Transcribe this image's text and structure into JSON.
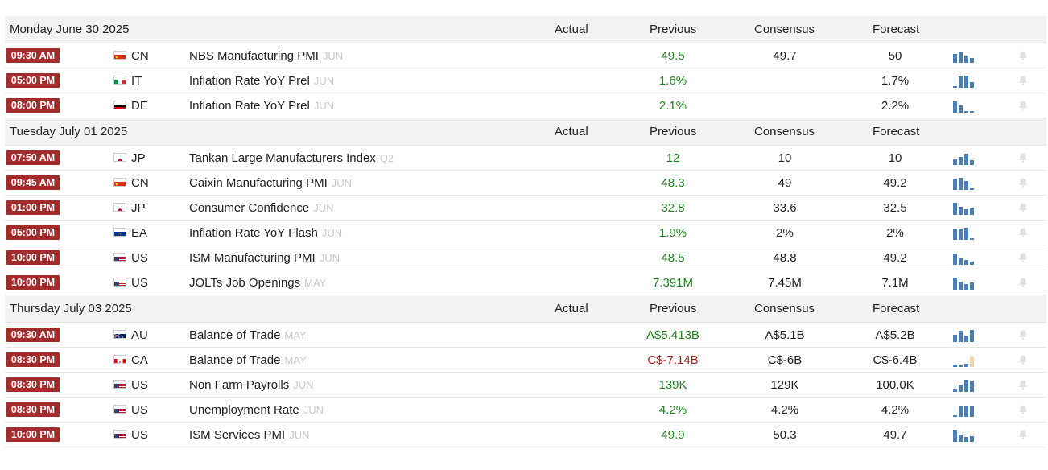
{
  "headers": {
    "actual": "Actual",
    "previous": "Previous",
    "consensus": "Consensus",
    "forecast": "Forecast"
  },
  "colors": {
    "time_badge": "#a22b2b",
    "positive": "#1f7f1f",
    "negative": "#a71e1e",
    "spark_bar": "#4a7fb5",
    "spark_bar_light": "#f0d8a8"
  },
  "days": [
    {
      "date": "Monday June 30 2025",
      "events": [
        {
          "time": "09:30 AM",
          "flag": "cn-flag-icon",
          "country": "CN",
          "name": "NBS Manufacturing PMI",
          "ref": "JUN",
          "actual": "",
          "previous": "49.5",
          "prev_color": "green",
          "consensus": "49.7",
          "forecast": "50",
          "spark": [
            0.7,
            0.9,
            0.55,
            0.4
          ],
          "spark_light": false
        },
        {
          "time": "05:00 PM",
          "flag": "it-flag-icon",
          "country": "IT",
          "name": "Inflation Rate YoY Prel",
          "ref": "JUN",
          "actual": "",
          "previous": "1.6%",
          "prev_color": "green",
          "consensus": "",
          "forecast": "1.7%",
          "spark": [
            0.12,
            0.9,
            0.95,
            0.45
          ],
          "spark_light": false
        },
        {
          "time": "08:00 PM",
          "flag": "de-flag-icon",
          "country": "DE",
          "name": "Inflation Rate YoY Prel",
          "ref": "JUN",
          "actual": "",
          "previous": "2.1%",
          "prev_color": "green",
          "consensus": "",
          "forecast": "2.2%",
          "spark": [
            0.9,
            0.55,
            0.15,
            0.15
          ],
          "spark_light": false
        }
      ]
    },
    {
      "date": "Tuesday July 01 2025",
      "events": [
        {
          "time": "07:50 AM",
          "flag": "jp-flag-icon",
          "country": "JP",
          "name": "Tankan Large Manufacturers Index",
          "ref": "Q2",
          "actual": "",
          "previous": "12",
          "prev_color": "green",
          "consensus": "10",
          "forecast": "10",
          "spark": [
            0.45,
            0.6,
            0.85,
            0.35
          ],
          "spark_light": false
        },
        {
          "time": "09:45 AM",
          "flag": "cn-flag-icon",
          "country": "CN",
          "name": "Caixin Manufacturing PMI",
          "ref": "JUN",
          "actual": "",
          "previous": "48.3",
          "prev_color": "green",
          "consensus": "49",
          "forecast": "49.2",
          "spark": [
            0.85,
            0.95,
            0.7,
            0.12
          ],
          "spark_light": false
        },
        {
          "time": "01:00 PM",
          "flag": "jp-flag-icon",
          "country": "JP",
          "name": "Consumer Confidence",
          "ref": "JUN",
          "actual": "",
          "previous": "32.8",
          "prev_color": "green",
          "consensus": "33.6",
          "forecast": "32.5",
          "spark": [
            0.95,
            0.6,
            0.45,
            0.55
          ],
          "spark_light": false
        },
        {
          "time": "05:00 PM",
          "flag": "eu-flag-icon",
          "country": "EA",
          "name": "Inflation Rate YoY Flash",
          "ref": "JUN",
          "actual": "",
          "previous": "1.9%",
          "prev_color": "green",
          "consensus": "2%",
          "forecast": "2%",
          "spark": [
            0.9,
            0.85,
            0.95,
            0.15
          ],
          "spark_light": false
        },
        {
          "time": "10:00 PM",
          "flag": "us-flag-icon",
          "country": "US",
          "name": "ISM Manufacturing PMI",
          "ref": "JUN",
          "actual": "",
          "previous": "48.5",
          "prev_color": "green",
          "consensus": "48.8",
          "forecast": "49.2",
          "spark": [
            0.9,
            0.55,
            0.35,
            0.25
          ],
          "spark_light": false
        },
        {
          "time": "10:00 PM",
          "flag": "us-flag-icon",
          "country": "US",
          "name": "JOLTs Job Openings",
          "ref": "MAY",
          "actual": "",
          "previous": "7.391M",
          "prev_color": "green",
          "consensus": "7.45M",
          "forecast": "7.1M",
          "spark": [
            0.95,
            0.6,
            0.45,
            0.55
          ],
          "spark_light": false
        }
      ]
    },
    {
      "date": "Thursday July 03 2025",
      "events": [
        {
          "time": "09:30 AM",
          "flag": "au-flag-icon",
          "country": "AU",
          "name": "Balance of Trade",
          "ref": "MAY",
          "actual": "",
          "previous": "A$5.413B",
          "prev_color": "green",
          "consensus": "A$5.1B",
          "forecast": "A$5.2B",
          "spark": [
            0.55,
            0.9,
            0.5,
            0.95
          ],
          "spark_light": false
        },
        {
          "time": "08:30 PM",
          "flag": "ca-flag-icon",
          "country": "CA",
          "name": "Balance of Trade",
          "ref": "MAY",
          "actual": "",
          "previous": "C$-7.14B",
          "prev_color": "red",
          "consensus": "C$-6B",
          "forecast": "C$-6.4B",
          "spark": [
            0.2,
            0.15,
            0.25,
            0.8
          ],
          "spark_light": true
        },
        {
          "time": "08:30 PM",
          "flag": "us-flag-icon",
          "country": "US",
          "name": "Non Farm Payrolls",
          "ref": "JUN",
          "actual": "",
          "previous": "139K",
          "prev_color": "green",
          "consensus": "129K",
          "forecast": "100.0K",
          "spark": [
            0.25,
            0.55,
            0.95,
            0.85
          ],
          "spark_light": false
        },
        {
          "time": "08:30 PM",
          "flag": "us-flag-icon",
          "country": "US",
          "name": "Unemployment Rate",
          "ref": "JUN",
          "actual": "",
          "previous": "4.2%",
          "prev_color": "green",
          "consensus": "4.2%",
          "forecast": "4.2%",
          "spark": [
            0.1,
            0.9,
            0.9,
            0.9
          ],
          "spark_light": false
        },
        {
          "time": "10:00 PM",
          "flag": "us-flag-icon",
          "country": "US",
          "name": "ISM Services PMI",
          "ref": "JUN",
          "actual": "",
          "previous": "49.9",
          "prev_color": "green",
          "consensus": "50.3",
          "forecast": "49.7",
          "spark": [
            0.95,
            0.55,
            0.35,
            0.45
          ],
          "spark_light": false
        }
      ]
    }
  ]
}
